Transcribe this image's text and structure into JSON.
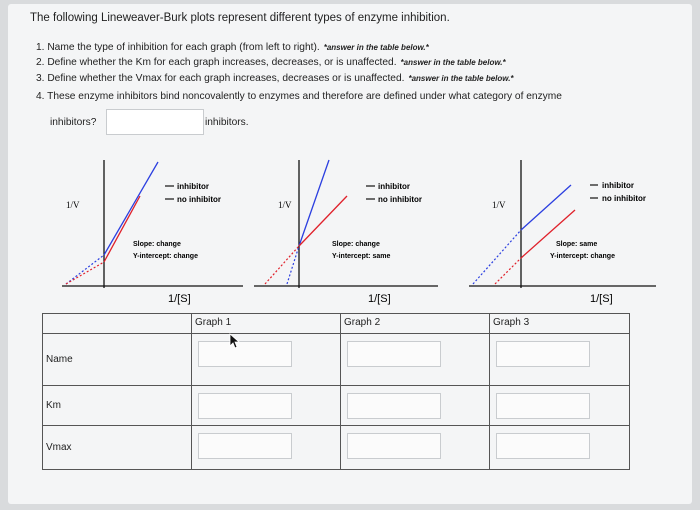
{
  "intro": "The following Lineweaver-Burk plots represent different types of enzyme inhibition.",
  "questions": [
    {
      "text": "1. Name the type of inhibition for each graph (from left to right).",
      "note": "*answer in the table below.*"
    },
    {
      "text": "2. Define whether the Km for each graph increases, decreases, or is unaffected.",
      "note": "*answer in the table below.*"
    },
    {
      "text": "3. Define whether the Vmax for each graph increases, decreases or is unaffected.",
      "note": "*answer in the table below.*"
    },
    {
      "text": "4. These enzyme inhibitors bind noncovalently to enzymes and therefore are defined under what category of enzyme",
      "note": ""
    }
  ],
  "category_prefix": "inhibitors?",
  "category_suffix": "inhibitors.",
  "category_answer": "",
  "graphs": [
    {
      "y_label": "1/V",
      "x_label": "1/[S]",
      "legend": [
        "inhibitor",
        "no inhibitor"
      ],
      "slope_note": "Slope: change",
      "intercept_note": "Y-intercept: change"
    },
    {
      "y_label": "1/V",
      "x_label": "1/[S]",
      "legend": [
        "inhibitor",
        "no inhibitor"
      ],
      "slope_note": "Slope: change",
      "intercept_note": "Y-intercept: same"
    },
    {
      "y_label": "1/V",
      "x_label": "1/[S]",
      "legend": [
        "inhibitor",
        "no inhibitor"
      ],
      "slope_note": "Slope: same",
      "intercept_note": "Y-intercept: change"
    }
  ],
  "colors": {
    "inhibitor_line": "#1a1a1a",
    "no_inhibitor_line": "#e0212b",
    "blue_line": "#2b3fe0",
    "extrapolation": "#2b3fe0"
  },
  "table": {
    "headers": [
      "",
      "Graph 1",
      "Graph 2",
      "Graph 3"
    ],
    "rows": [
      {
        "label": "Name",
        "values": [
          "",
          "",
          ""
        ]
      },
      {
        "label": "Km",
        "values": [
          "",
          "",
          ""
        ]
      },
      {
        "label": "Vmax",
        "values": [
          "",
          "",
          ""
        ]
      }
    ]
  }
}
